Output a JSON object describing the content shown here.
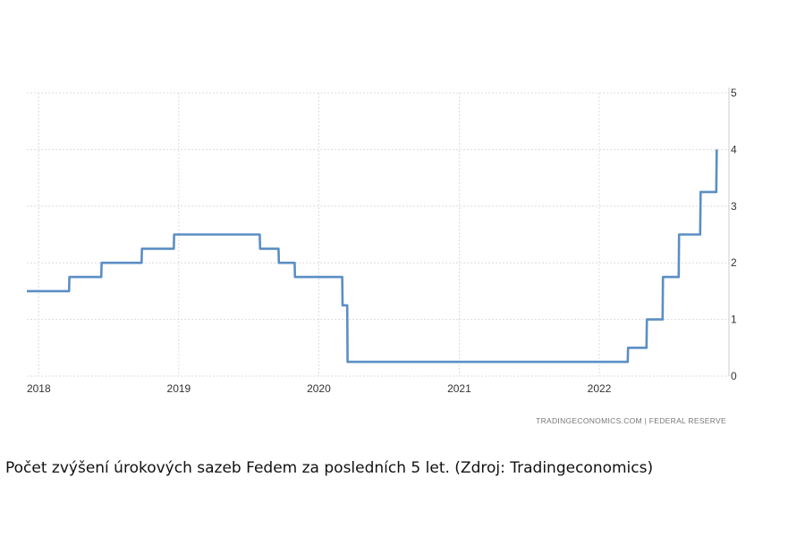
{
  "chart_data": {
    "type": "line",
    "title": "",
    "xlabel": "",
    "ylabel": "",
    "x_tick_labels": [
      "2018",
      "2019",
      "2020",
      "2021",
      "2022"
    ],
    "y_tick_labels": [
      "0",
      "1",
      "2",
      "3",
      "4",
      "5"
    ],
    "ylim": [
      0,
      5
    ],
    "xlim": [
      "2017-12-01",
      "2022-12-05"
    ],
    "grid": true,
    "legend": "none",
    "color": "#5b8ec4",
    "series": [
      {
        "points": [
          [
            "2017-12-01",
            1.5
          ],
          [
            "2018-03-21",
            1.5
          ],
          [
            "2018-03-22",
            1.75
          ],
          [
            "2018-06-13",
            1.75
          ],
          [
            "2018-06-14",
            2.0
          ],
          [
            "2018-09-26",
            2.0
          ],
          [
            "2018-09-27",
            2.25
          ],
          [
            "2018-12-19",
            2.25
          ],
          [
            "2018-12-20",
            2.5
          ],
          [
            "2019-07-31",
            2.5
          ],
          [
            "2019-08-01",
            2.25
          ],
          [
            "2019-09-18",
            2.25
          ],
          [
            "2019-09-19",
            2.0
          ],
          [
            "2019-10-30",
            2.0
          ],
          [
            "2019-10-31",
            1.75
          ],
          [
            "2020-03-02",
            1.75
          ],
          [
            "2020-03-03",
            1.25
          ],
          [
            "2020-03-15",
            1.25
          ],
          [
            "2020-03-16",
            0.25
          ],
          [
            "2022-03-16",
            0.25
          ],
          [
            "2022-03-17",
            0.5
          ],
          [
            "2022-05-04",
            0.5
          ],
          [
            "2022-05-05",
            1.0
          ],
          [
            "2022-06-15",
            1.0
          ],
          [
            "2022-06-16",
            1.75
          ],
          [
            "2022-07-27",
            1.75
          ],
          [
            "2022-07-28",
            2.5
          ],
          [
            "2022-09-21",
            2.5
          ],
          [
            "2022-09-22",
            3.25
          ],
          [
            "2022-11-02",
            3.25
          ],
          [
            "2022-11-03",
            4.0
          ]
        ]
      }
    ],
    "source": "TRADINGECONOMICS.COM  |  FEDERAL RESERVE"
  },
  "caption": "Počet zvýšení úrokových sazeb Fedem za posledních 5 let. (Zdroj: Tradingeconomics)"
}
